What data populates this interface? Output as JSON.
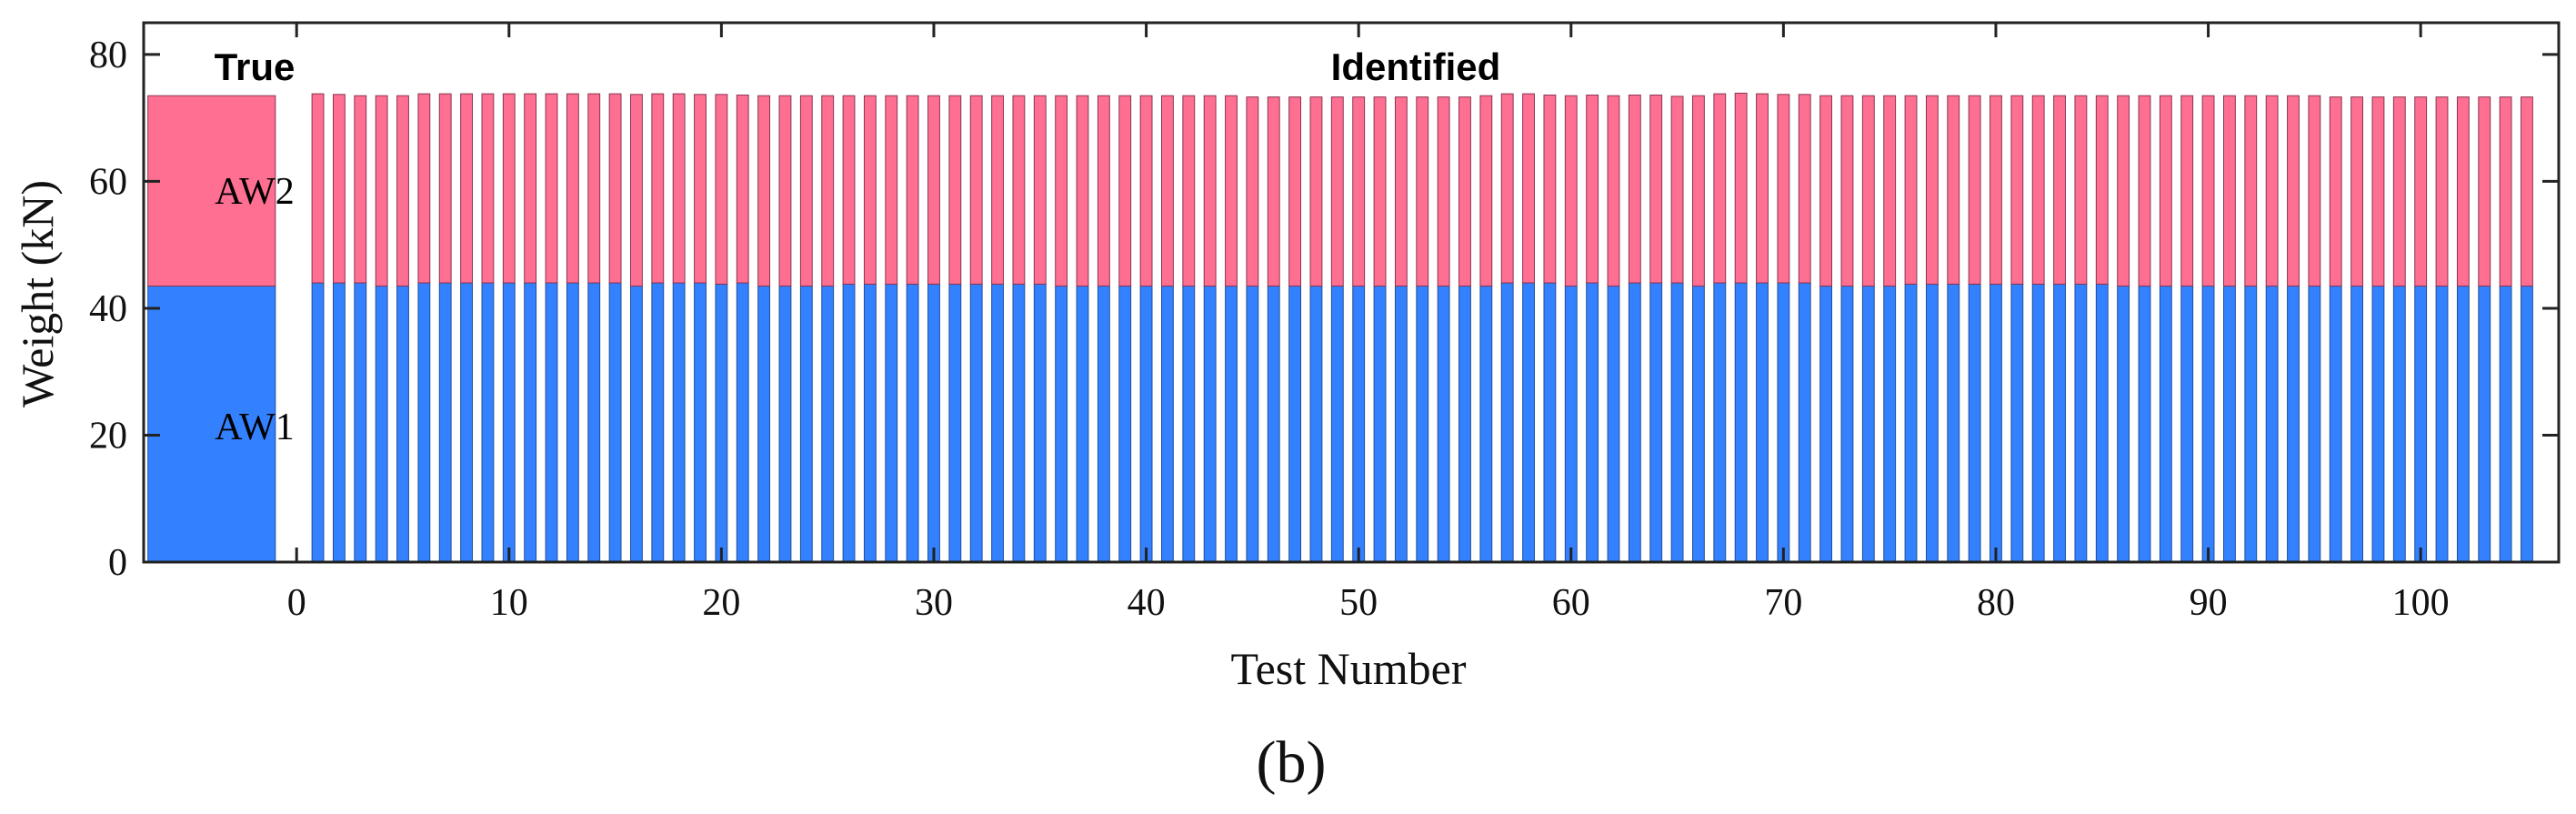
{
  "chart_data": {
    "type": "stacked-bar",
    "panel_label": "(b)",
    "xlabel": "Test Number",
    "ylabel": "Weight (kN)",
    "ylim": [
      0,
      85
    ],
    "yticks": [
      0,
      20,
      40,
      60,
      80
    ],
    "xticks": [
      0,
      10,
      20,
      30,
      40,
      50,
      60,
      70,
      80,
      90,
      100
    ],
    "xlim": [
      -7.2,
      106.5
    ],
    "series": [
      {
        "name": "AW1",
        "color": "#3381ff"
      },
      {
        "name": "AW2",
        "color": "#ff6f91"
      }
    ],
    "true_group": {
      "label": "True",
      "x_center": -4,
      "width": 6,
      "aw1": 43.5,
      "aw2": 30.0,
      "aw1_label": "AW1",
      "aw2_label": "AW2"
    },
    "identified_group": {
      "label": "Identified",
      "bar_width": 0.55,
      "tests": [
        1,
        2,
        3,
        4,
        5,
        6,
        7,
        8,
        9,
        10,
        11,
        12,
        13,
        14,
        15,
        16,
        17,
        18,
        19,
        20,
        21,
        22,
        23,
        24,
        25,
        26,
        27,
        28,
        29,
        30,
        31,
        32,
        33,
        34,
        35,
        36,
        37,
        38,
        39,
        40,
        41,
        42,
        43,
        44,
        45,
        46,
        47,
        48,
        49,
        50,
        51,
        52,
        53,
        54,
        55,
        56,
        57,
        58,
        59,
        60,
        61,
        62,
        63,
        64,
        65,
        66,
        67,
        68,
        69,
        70,
        71,
        72,
        73,
        74,
        75,
        76,
        77,
        78,
        79,
        80,
        81,
        82,
        83,
        84,
        85,
        86,
        87,
        88,
        89,
        90,
        91,
        92,
        93,
        94,
        95,
        96,
        97,
        98,
        99,
        100,
        101,
        102,
        103,
        104,
        105
      ],
      "aw1": [
        44.0,
        44.0,
        44.0,
        43.5,
        43.5,
        44.0,
        44.0,
        44.0,
        44.0,
        44.0,
        44.0,
        44.0,
        44.0,
        44.0,
        44.0,
        43.5,
        44.0,
        44.0,
        44.0,
        43.8,
        44.0,
        43.5,
        43.5,
        43.5,
        43.5,
        43.8,
        43.8,
        43.8,
        43.8,
        43.8,
        43.8,
        43.8,
        43.8,
        43.8,
        43.8,
        43.5,
        43.5,
        43.5,
        43.5,
        43.5,
        43.5,
        43.5,
        43.5,
        43.5,
        43.5,
        43.5,
        43.5,
        43.5,
        43.5,
        43.5,
        43.5,
        43.5,
        43.5,
        43.5,
        43.5,
        43.5,
        44.0,
        44.0,
        44.0,
        43.5,
        44.0,
        43.5,
        44.0,
        44.0,
        44.0,
        43.5,
        44.0,
        44.0,
        44.0,
        44.0,
        44.0,
        43.5,
        43.5,
        43.5,
        43.5,
        43.8,
        43.8,
        43.8,
        43.8,
        43.8,
        43.8,
        43.8,
        43.8,
        43.8,
        43.8,
        43.5,
        43.5,
        43.5,
        43.5,
        43.5,
        43.5,
        43.5,
        43.5,
        43.5,
        43.5,
        43.5,
        43.5,
        43.5,
        43.5,
        43.5,
        43.5,
        43.5,
        43.5,
        43.5,
        43.5
      ],
      "aw2": [
        29.8,
        29.7,
        29.5,
        30.0,
        30.0,
        29.8,
        29.8,
        29.8,
        29.8,
        29.8,
        29.8,
        29.8,
        29.8,
        29.8,
        29.8,
        30.2,
        29.8,
        29.8,
        29.7,
        29.9,
        29.6,
        30.0,
        30.0,
        30.0,
        30.0,
        29.7,
        29.7,
        29.7,
        29.7,
        29.7,
        29.7,
        29.7,
        29.7,
        29.7,
        29.7,
        30.0,
        30.0,
        30.0,
        30.0,
        30.0,
        30.0,
        30.0,
        30.0,
        30.0,
        29.8,
        29.8,
        29.8,
        29.8,
        29.8,
        29.8,
        29.8,
        29.8,
        29.8,
        29.8,
        29.8,
        30.0,
        29.8,
        29.8,
        29.6,
        30.0,
        29.6,
        30.0,
        29.6,
        29.6,
        29.4,
        30.0,
        29.8,
        29.9,
        29.8,
        29.7,
        29.7,
        30.0,
        30.0,
        30.0,
        30.0,
        29.7,
        29.7,
        29.7,
        29.7,
        29.7,
        29.7,
        29.7,
        29.7,
        29.7,
        29.7,
        30.0,
        30.0,
        30.0,
        30.0,
        30.0,
        30.0,
        30.0,
        30.0,
        30.0,
        30.0,
        29.8,
        29.8,
        29.8,
        29.8,
        29.8,
        29.8,
        29.8,
        29.8,
        29.8,
        29.8
      ]
    }
  }
}
